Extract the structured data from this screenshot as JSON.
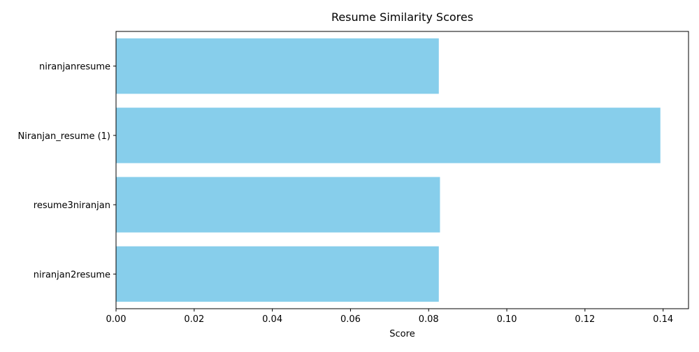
{
  "chart_data": {
    "type": "bar",
    "orientation": "horizontal",
    "title": "Resume Similarity Scores",
    "xlabel": "Score",
    "ylabel": "",
    "categories": [
      "niranjanresume",
      "Niranjan_resume (1)",
      "resume3niranjan",
      "niranjan2resume"
    ],
    "values": [
      0.0826,
      0.1393,
      0.0829,
      0.0826
    ],
    "xlim": [
      0,
      0.1465
    ],
    "xticks": [
      0.0,
      0.02,
      0.04,
      0.06,
      0.08,
      0.1,
      0.12,
      0.14
    ],
    "xtick_labels": [
      "0.00",
      "0.02",
      "0.04",
      "0.06",
      "0.08",
      "0.10",
      "0.12",
      "0.14"
    ],
    "bar_color": "#87CEEB",
    "grid": false,
    "legend": "none"
  }
}
